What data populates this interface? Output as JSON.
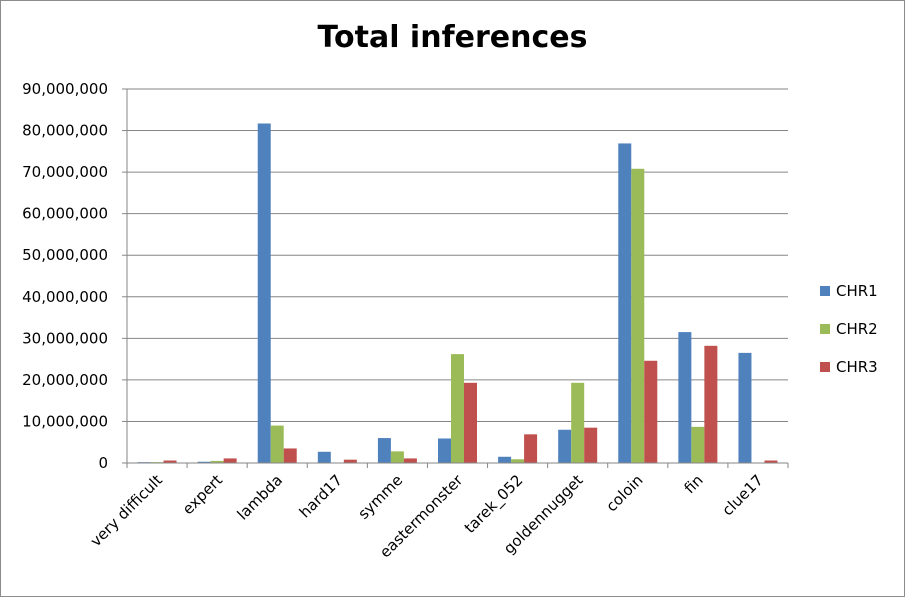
{
  "chart_data": {
    "type": "bar",
    "title": "Total inferences",
    "xlabel": "",
    "ylabel": "",
    "ylim": [
      0,
      90000000
    ],
    "yticks": [
      0,
      10000000,
      20000000,
      30000000,
      40000000,
      50000000,
      60000000,
      70000000,
      80000000,
      90000000
    ],
    "ytick_labels": [
      "0",
      "10,000,000",
      "20,000,000",
      "30,000,000",
      "40,000,000",
      "50,000,000",
      "60,000,000",
      "70,000,000",
      "80,000,000",
      "90,000,000"
    ],
    "grid": true,
    "legend_position": "right",
    "categories": [
      "very difficult",
      "expert",
      "lambda",
      "hard17",
      "symme",
      "eastermonster",
      "tarek_052",
      "goldennugget",
      "coloin",
      "fin",
      "clue17"
    ],
    "series": [
      {
        "name": "CHR1",
        "color": "#4f81bd",
        "values": [
          200000,
          300000,
          81700000,
          2700000,
          6000000,
          5900000,
          1500000,
          8000000,
          76900000,
          31500000,
          26500000
        ]
      },
      {
        "name": "CHR2",
        "color": "#9bbb59",
        "values": [
          200000,
          500000,
          9000000,
          100000,
          2800000,
          26200000,
          900000,
          19300000,
          70800000,
          8700000,
          100000
        ]
      },
      {
        "name": "CHR3",
        "color": "#c0504d",
        "values": [
          600000,
          1100000,
          3500000,
          800000,
          1100000,
          19300000,
          6900000,
          8500000,
          24600000,
          28200000,
          600000
        ]
      }
    ]
  }
}
